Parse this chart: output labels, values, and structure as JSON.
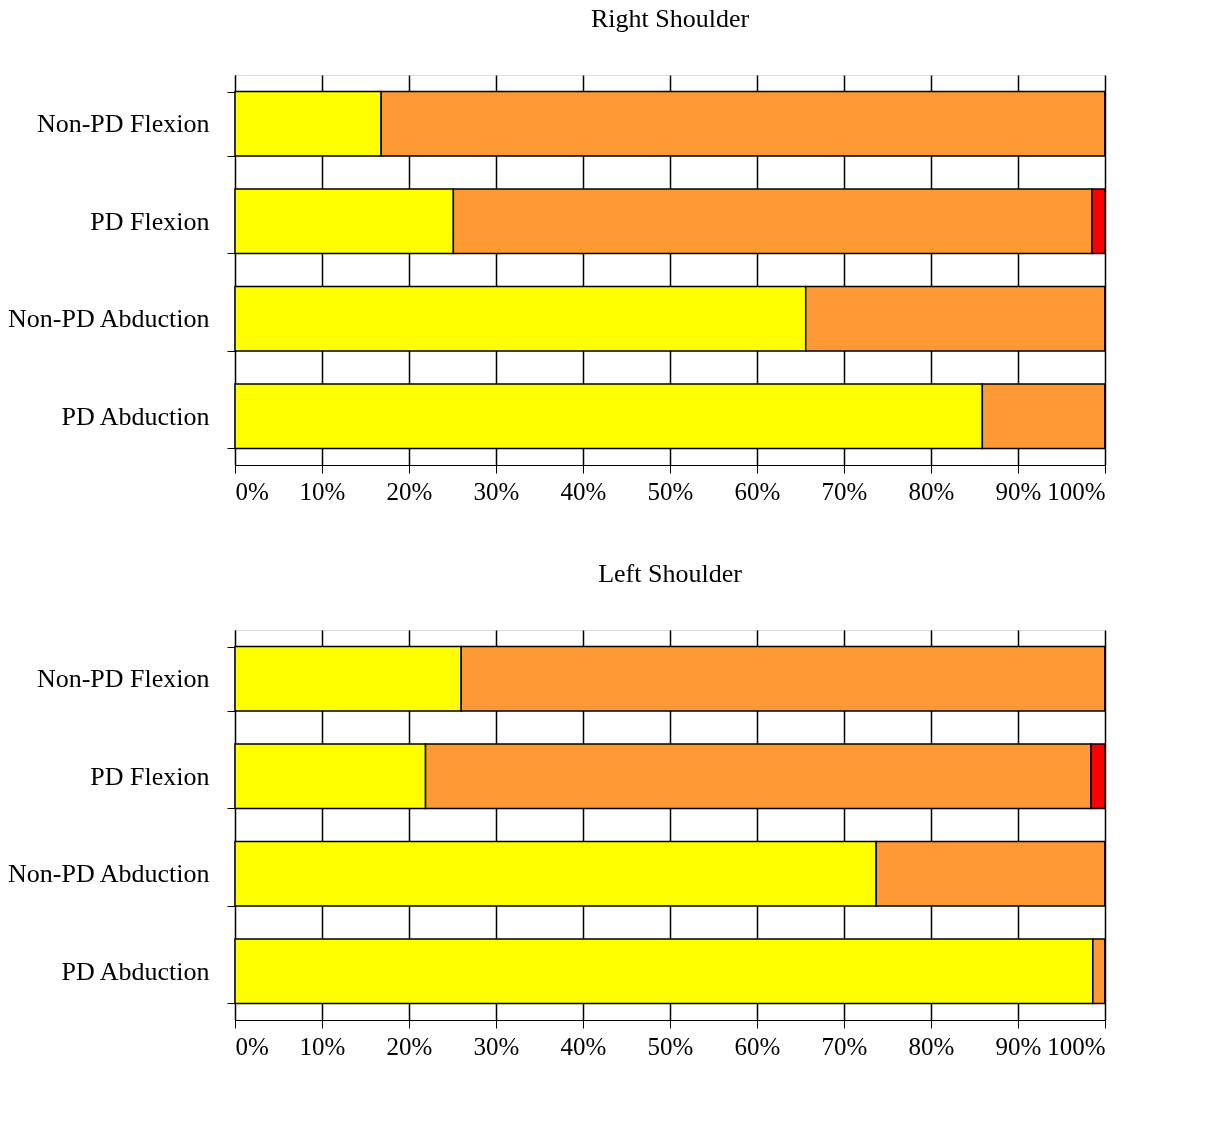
{
  "chart_data": [
    {
      "type": "bar",
      "orientation": "horizontal",
      "stacked": true,
      "title": "Right Shoulder",
      "categories": [
        "Non-PD Flexion",
        "PD Flexion",
        "Non-PD Abduction",
        "PD Abduction"
      ],
      "series": [
        {
          "color": "#ffff00",
          "values": [
            16.8,
            25.1,
            65.6,
            85.9
          ]
        },
        {
          "color": "#ff9933",
          "values": [
            83.2,
            73.4,
            34.4,
            14.1
          ]
        },
        {
          "color": "#ff0000",
          "values": [
            0,
            1.5,
            0,
            0
          ]
        }
      ],
      "xlim": [
        0,
        100
      ],
      "xticks": [
        {
          "value": 0,
          "label": "0%"
        },
        {
          "value": 10,
          "label": "10%"
        },
        {
          "value": 20,
          "label": "20%"
        },
        {
          "value": 30,
          "label": "30%"
        },
        {
          "value": 40,
          "label": "40%"
        },
        {
          "value": 50,
          "label": "50%"
        },
        {
          "value": 60,
          "label": "60%"
        },
        {
          "value": 70,
          "label": "70%"
        },
        {
          "value": 80,
          "label": "80%"
        },
        {
          "value": 90,
          "label": "90%"
        },
        {
          "value": 100,
          "label": "100%"
        }
      ],
      "grid": "x"
    },
    {
      "type": "bar",
      "orientation": "horizontal",
      "stacked": true,
      "title": "Left Shoulder",
      "categories": [
        "Non-PD Flexion",
        "PD Flexion",
        "Non-PD Abduction",
        "PD Abduction"
      ],
      "series": [
        {
          "color": "#ffff00",
          "values": [
            26.0,
            21.9,
            73.7,
            98.6
          ]
        },
        {
          "color": "#ff9933",
          "values": [
            74.0,
            76.5,
            26.3,
            1.4
          ]
        },
        {
          "color": "#ff0000",
          "values": [
            0,
            1.6,
            0,
            0
          ]
        }
      ],
      "xlim": [
        0,
        100
      ],
      "xticks": [
        {
          "value": 0,
          "label": "0%"
        },
        {
          "value": 10,
          "label": "10%"
        },
        {
          "value": 20,
          "label": "20%"
        },
        {
          "value": 30,
          "label": "30%"
        },
        {
          "value": 40,
          "label": "40%"
        },
        {
          "value": 50,
          "label": "50%"
        },
        {
          "value": 60,
          "label": "60%"
        },
        {
          "value": 70,
          "label": "70%"
        },
        {
          "value": 80,
          "label": "80%"
        },
        {
          "value": 90,
          "label": "90%"
        },
        {
          "value": 100,
          "label": "100%"
        }
      ],
      "grid": "x"
    }
  ]
}
